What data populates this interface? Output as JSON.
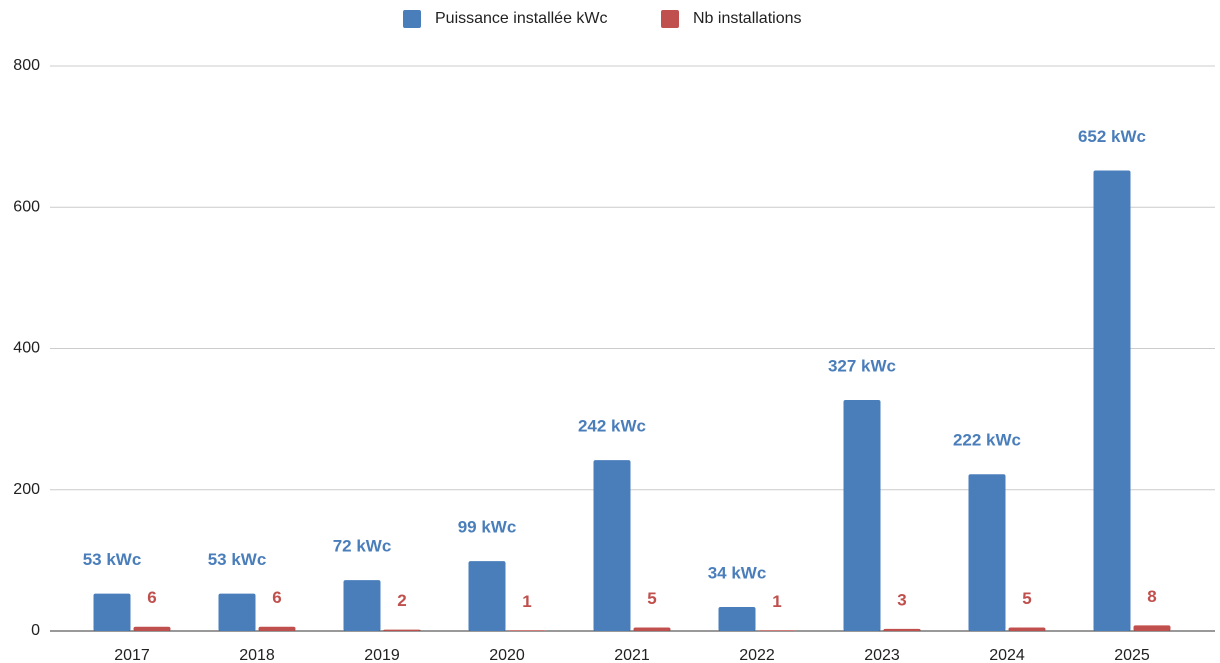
{
  "chart_data": {
    "type": "bar",
    "categories": [
      "2017",
      "2018",
      "2019",
      "2020",
      "2021",
      "2022",
      "2023",
      "2024",
      "2025"
    ],
    "series": [
      {
        "name": "Puissance installée kWc",
        "color": "#4a7ebb",
        "values": [
          53,
          53,
          72,
          99,
          242,
          34,
          327,
          222,
          652
        ],
        "value_labels": [
          "53 kWc",
          "53 kWc",
          "72 kWc",
          "99 kWc",
          "242 kWc",
          "34 kWc",
          "327 kWc",
          "222 kWc",
          "652 kWc"
        ]
      },
      {
        "name": "Nb installations",
        "color": "#c0504d",
        "values": [
          6,
          6,
          2,
          1,
          5,
          1,
          3,
          5,
          8
        ]
      }
    ],
    "ylim": [
      0,
      800
    ],
    "yticks": [
      0,
      200,
      400,
      600,
      800
    ],
    "grid": true,
    "legend": "top"
  }
}
